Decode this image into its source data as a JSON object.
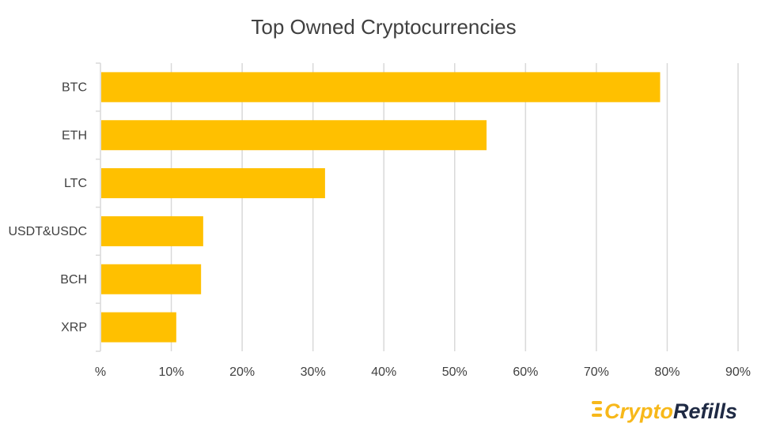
{
  "chart_data": {
    "type": "bar",
    "orientation": "horizontal",
    "title": "Top Owned Cryptocurrencies",
    "categories": [
      "BTC",
      "ETH",
      "LTC",
      "USDT&USDC",
      "BCH",
      "XRP"
    ],
    "values": [
      79,
      54.5,
      31.7,
      14.5,
      14.2,
      10.7
    ],
    "xlim": [
      0,
      90
    ],
    "x_ticks": [
      0,
      10,
      20,
      30,
      40,
      50,
      60,
      70,
      80,
      90
    ],
    "x_tick_labels": [
      "%",
      "10%",
      "20%",
      "30%",
      "40%",
      "50%",
      "60%",
      "70%",
      "80%",
      "90%"
    ],
    "grid": true,
    "legend": "none",
    "bar_color": "#FFC000",
    "grid_color": "#D9D9D9"
  },
  "branding": {
    "logo_icon": "crypto-refills-logo-icon",
    "logo_word_1": "Crypto",
    "logo_word_2": "Refills",
    "logo_accent": "#F7B81A",
    "logo_dark": "#1F2A44"
  }
}
